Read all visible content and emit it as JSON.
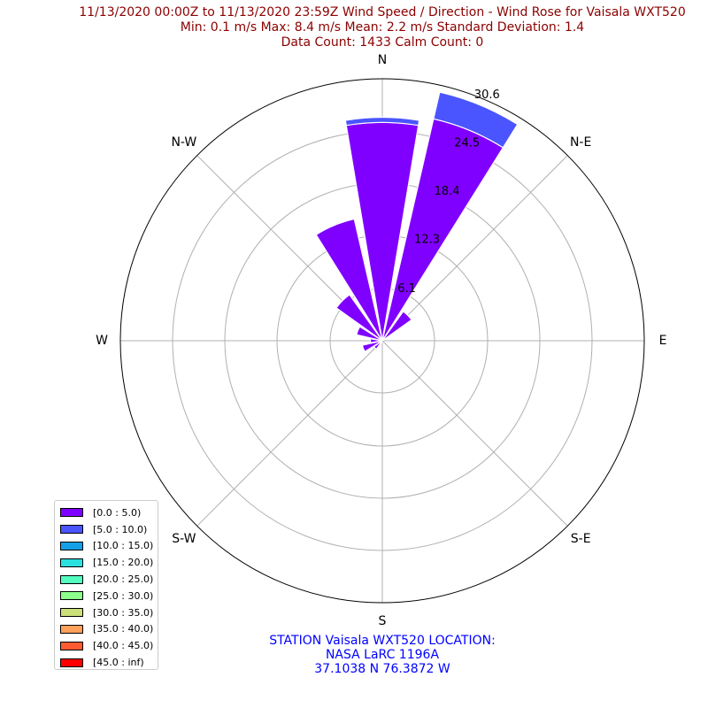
{
  "title": {
    "line1": "11/13/2020 00:00Z to 11/13/2020 23:59Z Wind Speed / Direction - Wind Rose for Vaisala WXT520",
    "line2": "Min: 0.1 m/s   Max: 8.4 m/s   Mean: 2.2 m/s  Standard Deviation: 1.4",
    "line3": "Data Count: 1433  Calm Count:  0"
  },
  "station": {
    "line1": "STATION Vaisala WXT520 LOCATION:",
    "line2": "NASA LaRC 1196A",
    "line3": "37.1038 N 76.3872 W"
  },
  "colors": {
    "title": "#8b0000",
    "station": "#0000ff",
    "grid": "#b0b0b0"
  },
  "chart_data": {
    "type": "windrose",
    "directions": [
      "N",
      "N-E",
      "E",
      "S-E",
      "S",
      "S-W",
      "W",
      "N-W"
    ],
    "radial_ticks": [
      "6.1",
      "12.3",
      "18.4",
      "24.5",
      "30.6"
    ],
    "radial_tick_values": [
      6.1,
      12.3,
      18.4,
      24.5,
      30.6
    ],
    "rmax": 30.6,
    "sectors": [
      {
        "angle_deg": 0,
        "stack": [
          25.5,
          0.6
        ]
      },
      {
        "angle_deg": 22.5,
        "stack": [
          26.6,
          3.2
        ]
      },
      {
        "angle_deg": 45,
        "stack": [
          4.2,
          0
        ]
      },
      {
        "angle_deg": 67.5,
        "stack": [
          0,
          0
        ]
      },
      {
        "angle_deg": 90,
        "stack": [
          0,
          0
        ]
      },
      {
        "angle_deg": 112.5,
        "stack": [
          0,
          0
        ]
      },
      {
        "angle_deg": 135,
        "stack": [
          0,
          0
        ]
      },
      {
        "angle_deg": 157.5,
        "stack": [
          0,
          0
        ]
      },
      {
        "angle_deg": 180,
        "stack": [
          0,
          0
        ]
      },
      {
        "angle_deg": 202.5,
        "stack": [
          0.5,
          0
        ]
      },
      {
        "angle_deg": 225,
        "stack": [
          1.2,
          0
        ]
      },
      {
        "angle_deg": 247.5,
        "stack": [
          2.4,
          0
        ]
      },
      {
        "angle_deg": 270,
        "stack": [
          1.4,
          0
        ]
      },
      {
        "angle_deg": 292.5,
        "stack": [
          3.1,
          0
        ]
      },
      {
        "angle_deg": 315,
        "stack": [
          6.6,
          0
        ]
      },
      {
        "angle_deg": 337.5,
        "stack": [
          14.6,
          0
        ]
      }
    ],
    "legend": [
      {
        "label": "[0.0 : 5.0)",
        "color": "#8000ff"
      },
      {
        "label": "[5.0 : 10.0)",
        "color": "#4a55ff"
      },
      {
        "label": "[10.0 : 15.0)",
        "color": "#14a0e6"
      },
      {
        "label": "[15.0 : 20.0)",
        "color": "#2ae0e0"
      },
      {
        "label": "[20.0 : 25.0)",
        "color": "#55ffc0"
      },
      {
        "label": "[25.0 : 30.0)",
        "color": "#8cff8c"
      },
      {
        "label": "[30.0 : 35.0)",
        "color": "#cce07a"
      },
      {
        "label": "[35.0 : 40.0)",
        "color": "#ffa05a"
      },
      {
        "label": "[40.0 : 45.0)",
        "color": "#ff5a32"
      },
      {
        "label": "[45.0 : inf)",
        "color": "#ff0000"
      }
    ]
  }
}
